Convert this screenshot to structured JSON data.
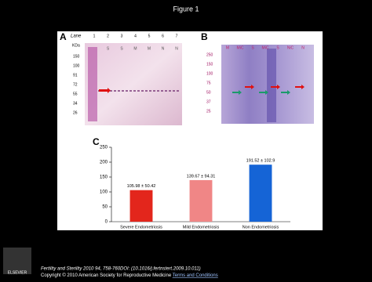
{
  "title": "Figure 1",
  "panel_a": {
    "label": "A",
    "lane_title": "Lane",
    "lanes": [
      "1",
      "2",
      "3",
      "4",
      "5",
      "6",
      "7"
    ],
    "lane_groups": [
      "S",
      "S",
      "M",
      "M",
      "N",
      "N"
    ],
    "marker_unit": "KDa",
    "markers": [
      "150",
      "100",
      "91",
      "72",
      "55",
      "34",
      "26"
    ]
  },
  "panel_b": {
    "label": "B",
    "lanes": [
      "M",
      "MiC",
      "S",
      "MiC",
      "S",
      "NiC",
      "N"
    ],
    "markers": [
      "250",
      "150",
      "100",
      "75",
      "50",
      "37",
      "25"
    ]
  },
  "chart_data": {
    "type": "bar",
    "panel_label": "C",
    "categories": [
      "Severe Endometriosis",
      "Mild Endometriosis",
      "Non Endometriosis"
    ],
    "values": [
      105.98,
      139.67,
      191.52
    ],
    "value_labels": [
      "105.98 ± 50.42",
      "139.67 ± 94.31",
      "191.52 ± 102.9"
    ],
    "colors": [
      "#e3261c",
      "#f08686",
      "#1564d6"
    ],
    "ylim": [
      0,
      250
    ],
    "yticks": [
      0,
      50,
      100,
      150,
      200,
      250
    ]
  },
  "footer": {
    "citation": "Fertility and Sterility 2010 94, 758-760DOI: (10.1016/j.fertnstert.2009.10.011)",
    "copyright": "Copyright © 2010 American Society for Reproductive Medicine",
    "link": "Terms and Conditions",
    "publisher": "ELSEVIER"
  }
}
